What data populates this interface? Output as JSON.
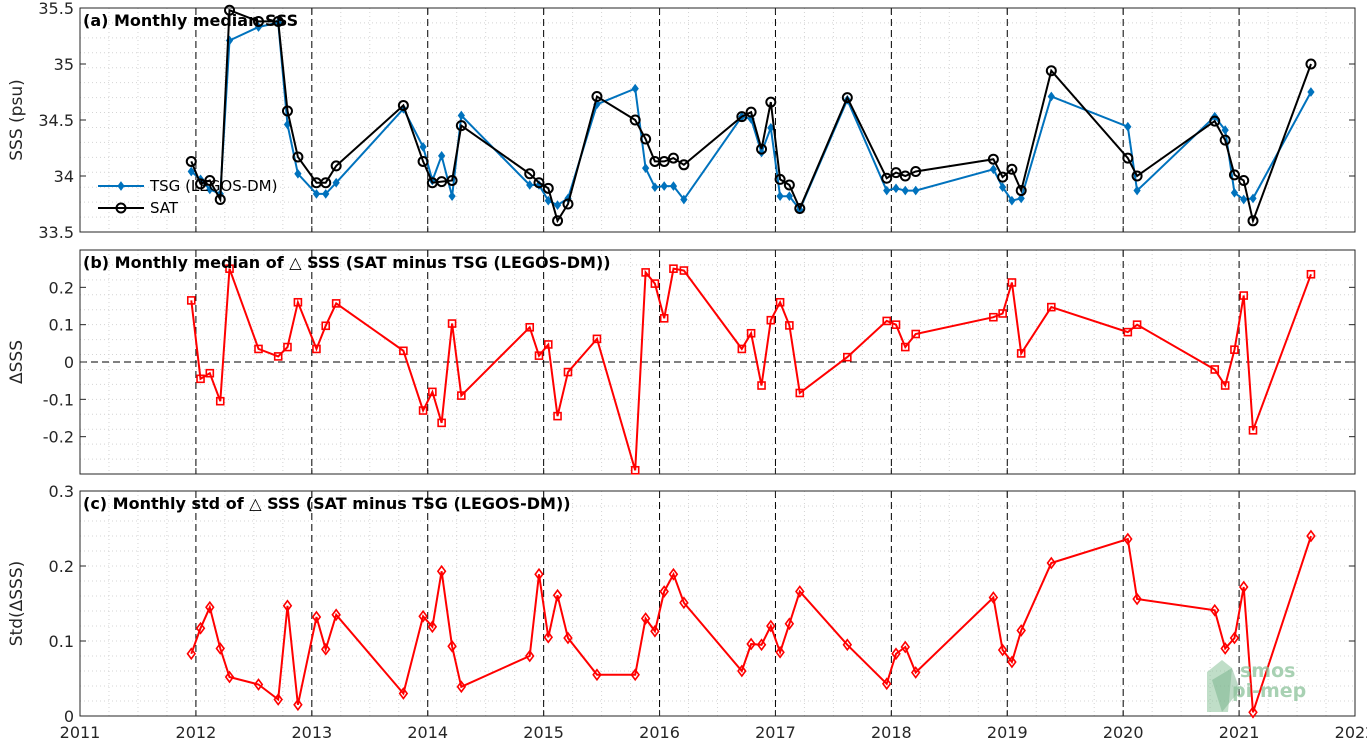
{
  "chart_data": [
    {
      "type": "line",
      "title": "(a) Monthly median SSS",
      "ylabel": "SSS (psu)",
      "xlim": [
        2011,
        2022
      ],
      "ylim": [
        33.5,
        35.5
      ],
      "yticks": [
        "33.5",
        "34",
        "34.5",
        "35",
        "35.5"
      ],
      "grid": true,
      "legend_position": "center-left",
      "series": [
        {
          "name": "TSG (LEGOS-DM)",
          "color": "#0072BD",
          "marker": "diamond",
          "x": [
            2011.96,
            2012.04,
            2012.12,
            2012.21,
            2012.29,
            2012.54,
            2012.71,
            2012.79,
            2012.88,
            2013.04,
            2013.12,
            2013.21,
            2013.79,
            2013.96,
            2014.04,
            2014.12,
            2014.21,
            2014.29,
            2014.88,
            2014.96,
            2015.04,
            2015.12,
            2015.21,
            2015.46,
            2015.79,
            2015.88,
            2015.96,
            2016.04,
            2016.12,
            2016.21,
            2016.71,
            2016.79,
            2016.88,
            2016.96,
            2017.04,
            2017.12,
            2017.21,
            2017.62,
            2017.96,
            2018.04,
            2018.12,
            2018.21,
            2018.88,
            2018.96,
            2019.04,
            2019.12,
            2019.38,
            2020.04,
            2020.12,
            2020.79,
            2020.88,
            2020.96,
            2021.04,
            2021.12,
            2021.62
          ],
          "values": [
            34.04,
            33.97,
            33.88,
            33.84,
            35.21,
            35.33,
            35.37,
            34.46,
            34.02,
            33.84,
            33.84,
            33.94,
            34.6,
            34.26,
            33.96,
            34.18,
            33.82,
            34.54,
            33.92,
            33.92,
            33.78,
            33.74,
            33.8,
            34.64,
            34.78,
            34.07,
            33.9,
            33.91,
            33.91,
            33.79,
            34.53,
            34.51,
            34.21,
            34.43,
            33.82,
            33.82,
            33.7,
            34.68,
            33.87,
            33.89,
            33.87,
            33.87,
            34.06,
            33.9,
            33.78,
            33.8,
            34.71,
            34.44,
            33.87,
            34.53,
            34.41,
            33.85,
            33.79,
            33.8,
            34.75
          ]
        },
        {
          "name": "SAT",
          "color": "#000000",
          "marker": "circle",
          "x": [
            2011.96,
            2012.04,
            2012.12,
            2012.21,
            2012.29,
            2012.54,
            2012.71,
            2012.79,
            2012.88,
            2013.04,
            2013.12,
            2013.21,
            2013.79,
            2013.96,
            2014.04,
            2014.12,
            2014.21,
            2014.29,
            2014.88,
            2014.96,
            2015.04,
            2015.12,
            2015.21,
            2015.46,
            2015.79,
            2015.88,
            2015.96,
            2016.04,
            2016.12,
            2016.21,
            2016.71,
            2016.79,
            2016.88,
            2016.96,
            2017.04,
            2017.12,
            2017.21,
            2017.62,
            2017.96,
            2018.04,
            2018.12,
            2018.21,
            2018.88,
            2018.96,
            2019.04,
            2019.12,
            2019.38,
            2020.04,
            2020.12,
            2020.79,
            2020.88,
            2020.96,
            2021.04,
            2021.12,
            2021.62
          ],
          "values": [
            34.13,
            33.93,
            33.96,
            33.79,
            35.48,
            35.38,
            35.38,
            34.58,
            34.17,
            33.94,
            33.94,
            34.09,
            34.63,
            34.13,
            33.94,
            33.95,
            33.96,
            34.45,
            34.02,
            33.94,
            33.89,
            33.6,
            33.75,
            34.71,
            34.5,
            34.33,
            34.13,
            34.13,
            34.16,
            34.1,
            34.53,
            34.57,
            34.24,
            34.66,
            33.97,
            33.92,
            33.71,
            34.7,
            33.98,
            34.03,
            34.0,
            34.04,
            34.15,
            33.99,
            34.06,
            33.87,
            34.94,
            34.16,
            34.0,
            34.49,
            34.32,
            34.01,
            33.96,
            33.6,
            35.0
          ]
        }
      ]
    },
    {
      "type": "line",
      "title": "(b) Monthly median of △ SSS (SAT minus TSG (LEGOS-DM))",
      "ylabel": "ΔSSS",
      "xlim": [
        2011,
        2022
      ],
      "ylim": [
        -0.3,
        0.3
      ],
      "yticks": [
        "-0.2",
        "-0.1",
        "0",
        "0.1",
        "0.2"
      ],
      "grid": true,
      "zero_line": true,
      "series": [
        {
          "color": "#FF0000",
          "marker": "square",
          "x": [
            2011.96,
            2012.04,
            2012.12,
            2012.21,
            2012.29,
            2012.54,
            2012.71,
            2012.79,
            2012.88,
            2013.04,
            2013.12,
            2013.21,
            2013.79,
            2013.96,
            2014.04,
            2014.12,
            2014.21,
            2014.29,
            2014.88,
            2014.96,
            2015.04,
            2015.12,
            2015.21,
            2015.46,
            2015.79,
            2015.88,
            2015.96,
            2016.04,
            2016.12,
            2016.21,
            2016.71,
            2016.79,
            2016.88,
            2016.96,
            2017.04,
            2017.12,
            2017.21,
            2017.62,
            2017.96,
            2018.04,
            2018.12,
            2018.21,
            2018.88,
            2018.96,
            2019.04,
            2019.12,
            2019.38,
            2020.04,
            2020.12,
            2020.79,
            2020.88,
            2020.96,
            2021.04,
            2021.12,
            2021.62
          ],
          "values": [
            0.165,
            -0.045,
            -0.03,
            -0.105,
            0.25,
            0.035,
            0.015,
            0.04,
            0.16,
            0.035,
            0.097,
            0.157,
            0.03,
            -0.13,
            -0.08,
            -0.163,
            0.103,
            -0.09,
            0.093,
            0.017,
            0.047,
            -0.145,
            -0.027,
            0.062,
            -0.29,
            0.24,
            0.21,
            0.117,
            0.25,
            0.245,
            0.035,
            0.077,
            -0.063,
            0.112,
            0.16,
            0.098,
            -0.083,
            0.013,
            0.11,
            0.1,
            0.04,
            0.075,
            0.12,
            0.13,
            0.213,
            0.023,
            0.147,
            0.08,
            0.1,
            -0.02,
            -0.063,
            0.033,
            0.178,
            -0.183,
            0.235
          ]
        }
      ]
    },
    {
      "type": "line",
      "title": "(c) Monthly std of △ SSS (SAT minus TSG (LEGOS-DM))",
      "ylabel": "Std(ΔSSS)",
      "xlim": [
        2011,
        2022
      ],
      "ylim": [
        0,
        0.3
      ],
      "yticks": [
        "0",
        "0.1",
        "0.2",
        "0.3"
      ],
      "xticks": [
        "2011",
        "2012",
        "2013",
        "2014",
        "2015",
        "2016",
        "2017",
        "2018",
        "2019",
        "2020",
        "2021",
        "2022"
      ],
      "grid": true,
      "series": [
        {
          "color": "#FF0000",
          "marker": "diamond",
          "x": [
            2011.96,
            2012.04,
            2012.12,
            2012.21,
            2012.29,
            2012.54,
            2012.71,
            2012.79,
            2012.88,
            2013.04,
            2013.12,
            2013.21,
            2013.79,
            2013.96,
            2014.04,
            2014.12,
            2014.21,
            2014.29,
            2014.88,
            2014.96,
            2015.04,
            2015.12,
            2015.21,
            2015.46,
            2015.79,
            2015.88,
            2015.96,
            2016.04,
            2016.12,
            2016.21,
            2016.71,
            2016.79,
            2016.88,
            2016.96,
            2017.04,
            2017.12,
            2017.21,
            2017.62,
            2017.96,
            2018.04,
            2018.12,
            2018.21,
            2018.88,
            2018.96,
            2019.04,
            2019.12,
            2019.38,
            2020.04,
            2020.12,
            2020.79,
            2020.88,
            2020.96,
            2021.04,
            2021.12,
            2021.62
          ],
          "values": [
            0.083,
            0.117,
            0.145,
            0.09,
            0.052,
            0.042,
            0.022,
            0.147,
            0.015,
            0.132,
            0.089,
            0.135,
            0.03,
            0.133,
            0.119,
            0.193,
            0.093,
            0.039,
            0.08,
            0.189,
            0.105,
            0.161,
            0.104,
            0.055,
            0.055,
            0.13,
            0.113,
            0.166,
            0.189,
            0.151,
            0.06,
            0.096,
            0.095,
            0.12,
            0.085,
            0.123,
            0.166,
            0.095,
            0.043,
            0.083,
            0.092,
            0.058,
            0.158,
            0.088,
            0.072,
            0.114,
            0.204,
            0.236,
            0.156,
            0.141,
            0.09,
            0.104,
            0.172,
            0.005,
            0.24
          ]
        }
      ]
    }
  ],
  "watermark": {
    "line1": "smos",
    "line2": "pi-mep",
    "color": "#8cc29a"
  }
}
